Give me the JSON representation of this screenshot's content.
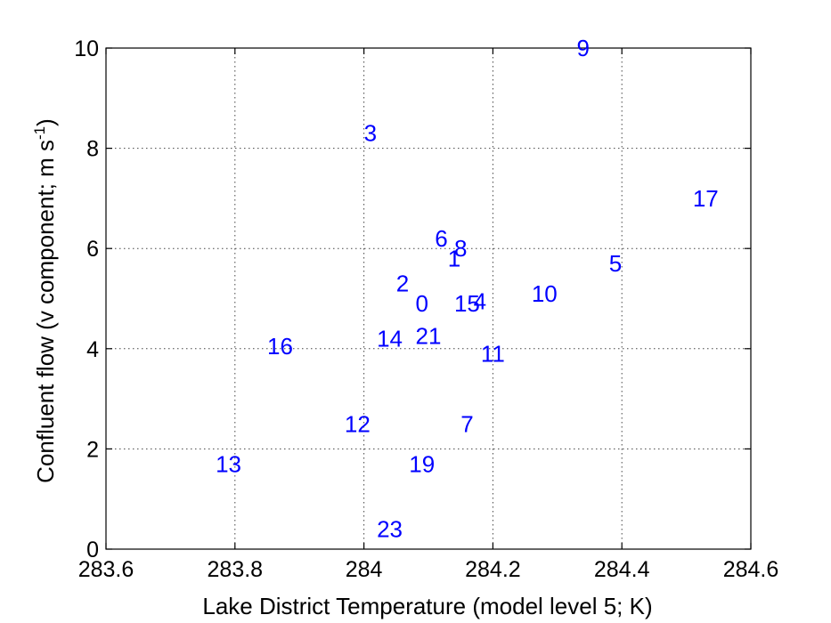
{
  "chart_data": {
    "type": "scatter",
    "title": "",
    "xlabel": "Lake District Temperature (model level 5; K)",
    "ylabel_main": "Confluent flow (v component; m s",
    "ylabel_sup": "-1",
    "ylabel_close": ")",
    "xlim": [
      283.6,
      284.6
    ],
    "ylim": [
      0,
      10
    ],
    "xticks": [
      283.6,
      283.8,
      284,
      284.2,
      284.4,
      284.6
    ],
    "xtick_labels": [
      "283.6",
      "283.8",
      "284",
      "284.2",
      "284.4",
      "284.6"
    ],
    "yticks": [
      0,
      2,
      4,
      6,
      8,
      10
    ],
    "ytick_labels": [
      "0",
      "2",
      "4",
      "6",
      "8",
      "10"
    ],
    "grid": true,
    "marker_color": "#0000ff",
    "points": [
      {
        "label": "0",
        "x": 284.09,
        "y": 4.9
      },
      {
        "label": "1",
        "x": 284.14,
        "y": 5.8
      },
      {
        "label": "2",
        "x": 284.06,
        "y": 5.3
      },
      {
        "label": "3",
        "x": 284.01,
        "y": 8.3
      },
      {
        "label": "4",
        "x": 284.18,
        "y": 4.95
      },
      {
        "label": "5",
        "x": 284.39,
        "y": 5.7
      },
      {
        "label": "6",
        "x": 284.12,
        "y": 6.2
      },
      {
        "label": "7",
        "x": 284.16,
        "y": 2.5
      },
      {
        "label": "8",
        "x": 284.15,
        "y": 6.0
      },
      {
        "label": "9",
        "x": 284.34,
        "y": 10.0
      },
      {
        "label": "10",
        "x": 284.28,
        "y": 5.1
      },
      {
        "label": "11",
        "x": 284.2,
        "y": 3.9
      },
      {
        "label": "12",
        "x": 283.99,
        "y": 2.5
      },
      {
        "label": "13",
        "x": 283.79,
        "y": 1.7
      },
      {
        "label": "14",
        "x": 284.04,
        "y": 4.2
      },
      {
        "label": "15",
        "x": 284.16,
        "y": 4.9
      },
      {
        "label": "16",
        "x": 283.87,
        "y": 4.05
      },
      {
        "label": "17",
        "x": 284.53,
        "y": 7.0
      },
      {
        "label": "19",
        "x": 284.09,
        "y": 1.7
      },
      {
        "label": "21",
        "x": 284.1,
        "y": 4.25
      },
      {
        "label": "23",
        "x": 284.04,
        "y": 0.4
      }
    ]
  }
}
